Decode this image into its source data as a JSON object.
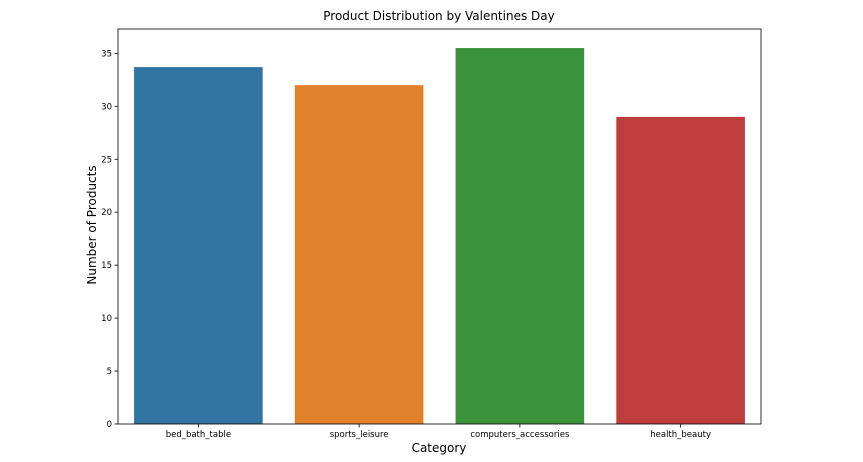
{
  "chart_data": {
    "type": "bar",
    "title": "Product Distribution by Valentines Day",
    "xlabel": "Category",
    "ylabel": "Number of Products",
    "categories": [
      "bed_bath_table",
      "sports_leisure",
      "computers_accessories",
      "health_beauty"
    ],
    "values": [
      33.7,
      32.0,
      35.5,
      29.0
    ],
    "colors": [
      "#3274a1",
      "#e1812c",
      "#3a923a",
      "#c03d3e"
    ],
    "ylim": [
      0,
      37.3
    ],
    "yticks": [
      0,
      5,
      10,
      15,
      20,
      25,
      30,
      35
    ],
    "grid": false,
    "legend": "none"
  }
}
